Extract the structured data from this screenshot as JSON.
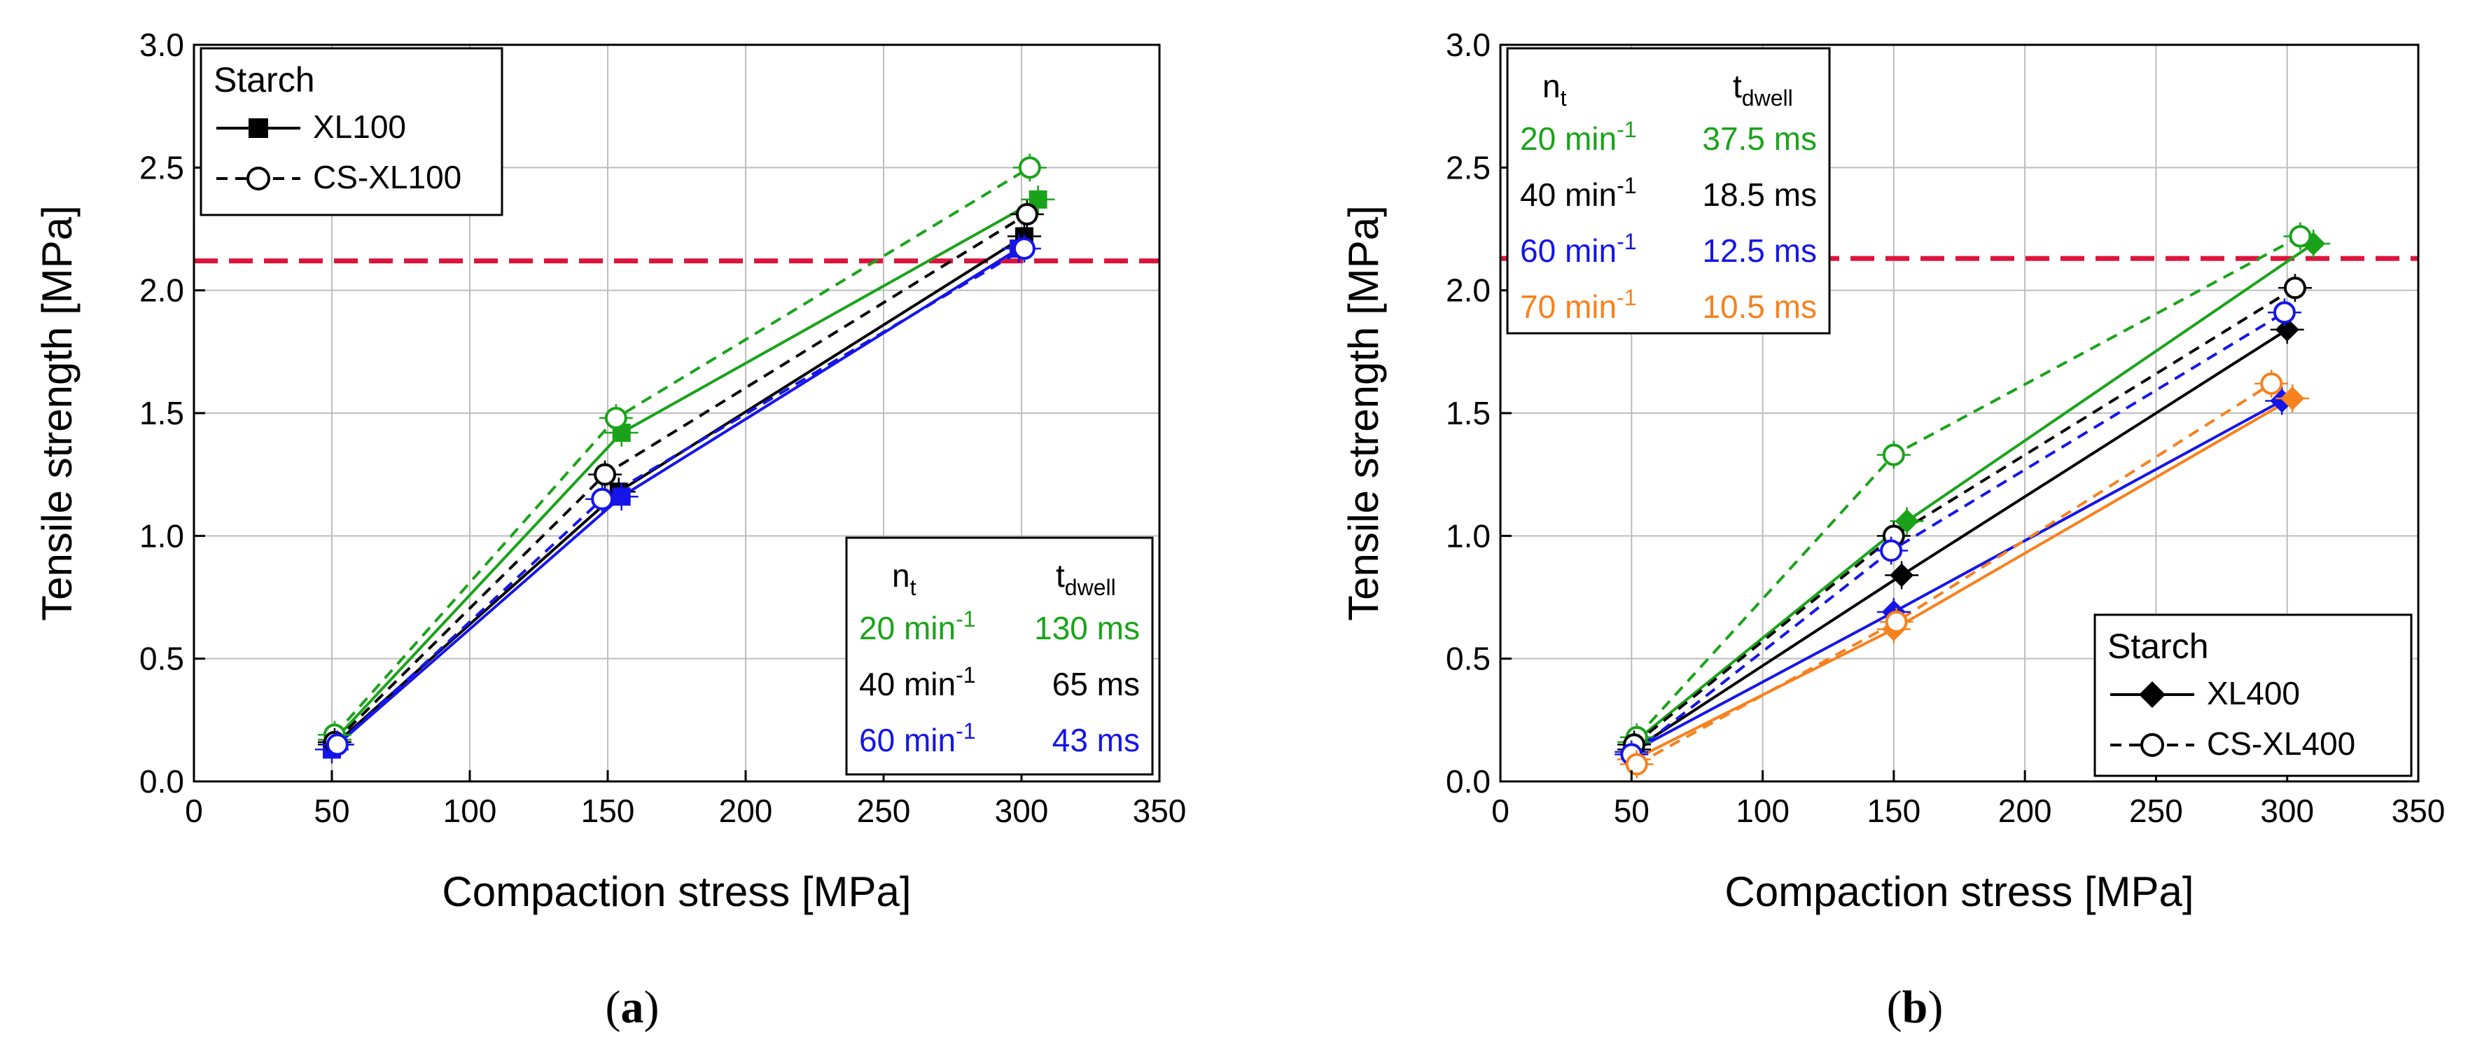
{
  "chart_data": [
    {
      "type": "line",
      "panel_label": "a",
      "xlabel": "Compaction stress [MPa]",
      "ylabel": "Tensile strength [MPa]",
      "xlim": [
        0,
        350
      ],
      "ylim": [
        0.0,
        3.0
      ],
      "xticks": [
        "0",
        "50",
        "100",
        "150",
        "200",
        "250",
        "300",
        "350"
      ],
      "yticks": [
        "0.0",
        "0.5",
        "1.0",
        "1.5",
        "2.0",
        "2.5",
        "3.0"
      ],
      "grid": true,
      "reference_line": {
        "y": 2.12,
        "color": "#dc143c",
        "style": "dashed"
      },
      "series_legend": {
        "title": "Starch",
        "placement": "top-left",
        "entries": [
          {
            "label": "XL100",
            "style": "solid",
            "marker": "filled-square"
          },
          {
            "label": "CS-XL100",
            "style": "dashed",
            "marker": "open-circle"
          }
        ]
      },
      "speed_table": {
        "placement": "bottom-right",
        "col1_header": "n",
        "col1_sub": "t",
        "col2_header": "t",
        "col2_sub": "dwell",
        "rows": [
          {
            "nt": "20 min",
            "sup": "-1",
            "tdwell": "130 ms",
            "color": "#1aa31a"
          },
          {
            "nt": "40 min",
            "sup": "-1",
            "tdwell": "65 ms",
            "color": "#000000"
          },
          {
            "nt": "60 min",
            "sup": "-1",
            "tdwell": "43 ms",
            "color": "#1515e8"
          }
        ]
      },
      "series": [
        {
          "color": "#1aa31a",
          "style": "solid",
          "marker": "filled-square",
          "x": [
            51,
            155,
            306
          ],
          "y": [
            0.17,
            1.42,
            2.37
          ]
        },
        {
          "color": "#000000",
          "style": "solid",
          "marker": "filled-square",
          "x": [
            51,
            154,
            301
          ],
          "y": [
            0.15,
            1.18,
            2.22
          ]
        },
        {
          "color": "#1515e8",
          "style": "solid",
          "marker": "filled-square",
          "x": [
            50,
            155,
            299
          ],
          "y": [
            0.13,
            1.16,
            2.17
          ]
        },
        {
          "color": "#1aa31a",
          "style": "dashed",
          "marker": "open-circle",
          "x": [
            51,
            153,
            303
          ],
          "y": [
            0.19,
            1.48,
            2.5
          ]
        },
        {
          "color": "#000000",
          "style": "dashed",
          "marker": "open-circle",
          "x": [
            51,
            149,
            302
          ],
          "y": [
            0.16,
            1.25,
            2.31
          ]
        },
        {
          "color": "#1515e8",
          "style": "dashed",
          "marker": "open-circle",
          "x": [
            52,
            148,
            301
          ],
          "y": [
            0.15,
            1.15,
            2.17
          ]
        }
      ]
    },
    {
      "type": "line",
      "panel_label": "b",
      "xlabel": "Compaction stress [MPa]",
      "ylabel": "Tensile strength [MPa]",
      "xlim": [
        0,
        350
      ],
      "ylim": [
        0.0,
        3.0
      ],
      "xticks": [
        "0",
        "50",
        "100",
        "150",
        "200",
        "250",
        "300",
        "350"
      ],
      "yticks": [
        "0.0",
        "0.5",
        "1.0",
        "1.5",
        "2.0",
        "2.5",
        "3.0"
      ],
      "grid": true,
      "reference_line": {
        "y": 2.13,
        "color": "#dc143c",
        "style": "dashed"
      },
      "series_legend": {
        "title": "Starch",
        "placement": "bottom-right",
        "entries": [
          {
            "label": "XL400",
            "style": "solid",
            "marker": "filled-diamond"
          },
          {
            "label": "CS-XL400",
            "style": "dashed",
            "marker": "open-circle"
          }
        ]
      },
      "speed_table": {
        "placement": "top-left",
        "col1_header": "n",
        "col1_sub": "t",
        "col2_header": "t",
        "col2_sub": "dwell",
        "rows": [
          {
            "nt": "20 min",
            "sup": "-1",
            "tdwell": "37.5 ms",
            "color": "#1aa31a"
          },
          {
            "nt": "40 min",
            "sup": "-1",
            "tdwell": "18.5 ms",
            "color": "#000000"
          },
          {
            "nt": "60 min",
            "sup": "-1",
            "tdwell": "12.5 ms",
            "color": "#1515e8"
          },
          {
            "nt": "70 min",
            "sup": "-1",
            "tdwell": "10.5 ms",
            "color": "#f7811e"
          }
        ]
      },
      "series": [
        {
          "color": "#1aa31a",
          "style": "solid",
          "marker": "filled-diamond",
          "x": [
            51,
            155,
            310
          ],
          "y": [
            0.16,
            1.06,
            2.19
          ]
        },
        {
          "color": "#000000",
          "style": "solid",
          "marker": "filled-diamond",
          "x": [
            51,
            153,
            300
          ],
          "y": [
            0.13,
            0.84,
            1.84
          ]
        },
        {
          "color": "#1515e8",
          "style": "solid",
          "marker": "filled-diamond",
          "x": [
            50,
            150,
            298
          ],
          "y": [
            0.12,
            0.69,
            1.55
          ]
        },
        {
          "color": "#f7811e",
          "style": "solid",
          "marker": "filled-diamond",
          "x": [
            51,
            150,
            302
          ],
          "y": [
            0.09,
            0.62,
            1.56
          ]
        },
        {
          "color": "#1aa31a",
          "style": "dashed",
          "marker": "open-circle",
          "x": [
            52,
            150,
            305
          ],
          "y": [
            0.18,
            1.33,
            2.22
          ]
        },
        {
          "color": "#000000",
          "style": "dashed",
          "marker": "open-circle",
          "x": [
            51,
            150,
            303
          ],
          "y": [
            0.15,
            1.0,
            2.01
          ]
        },
        {
          "color": "#1515e8",
          "style": "dashed",
          "marker": "open-circle",
          "x": [
            50,
            149,
            299
          ],
          "y": [
            0.11,
            0.94,
            1.91
          ]
        },
        {
          "color": "#f7811e",
          "style": "dashed",
          "marker": "open-circle",
          "x": [
            52,
            151,
            294
          ],
          "y": [
            0.07,
            0.65,
            1.62
          ]
        }
      ]
    }
  ]
}
